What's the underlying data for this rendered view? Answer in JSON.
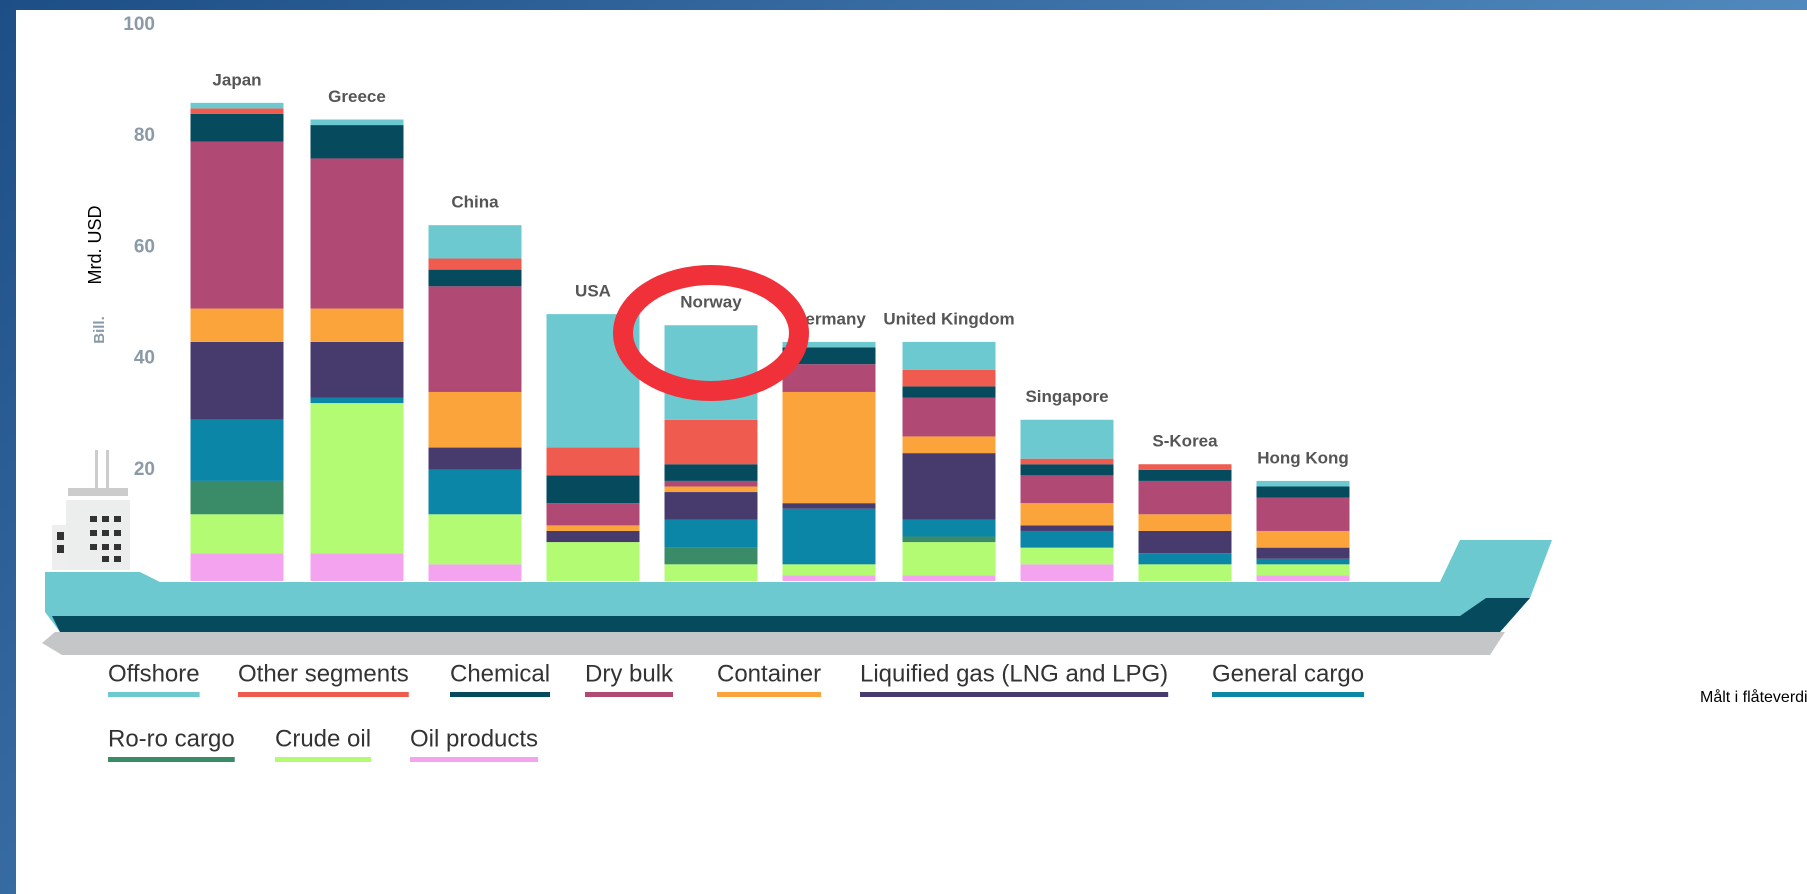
{
  "chart_data": {
    "type": "stacked_bar",
    "ylabel": "Bill.",
    "ylabel_secondary": "Mrd. USD",
    "note": "Målt i flåteverdi",
    "categories": [
      "Japan",
      "Greece",
      "China",
      "USA",
      "Norway",
      "Germany",
      "United Kingdom",
      "Singapore",
      "S-Korea",
      "Hong Kong"
    ],
    "ylim": [
      0,
      100
    ],
    "yticks": [
      20,
      40,
      60,
      80,
      100
    ],
    "series": [
      {
        "name": "Offshore",
        "color": "#6cc9d0",
        "values": [
          1,
          1,
          6,
          24,
          17,
          1,
          5,
          7,
          0,
          1
        ]
      },
      {
        "name": "Other segments",
        "color": "#ef5b4f",
        "values": [
          1,
          0,
          2,
          5,
          8,
          0,
          3,
          1,
          1,
          0
        ]
      },
      {
        "name": "Chemical",
        "color": "#064a5d",
        "values": [
          5,
          6,
          3,
          5,
          3,
          3,
          2,
          2,
          2,
          2
        ]
      },
      {
        "name": "Dry bulk",
        "color": "#b04a75",
        "values": [
          30,
          27,
          19,
          4,
          1,
          5,
          7,
          5,
          6,
          6
        ]
      },
      {
        "name": "Container",
        "color": "#fba43c",
        "values": [
          6,
          6,
          10,
          1,
          1,
          20,
          3,
          4,
          3,
          3
        ]
      },
      {
        "name": "Liquified gas (LNG and LPG)",
        "color": "#473b6e",
        "values": [
          14,
          10,
          4,
          2,
          5,
          1,
          12,
          1,
          4,
          2
        ]
      },
      {
        "name": "General cargo",
        "color": "#0c86a6",
        "values": [
          11,
          1,
          8,
          0,
          5,
          10,
          3,
          3,
          2,
          1
        ]
      },
      {
        "name": "Ro-ro cargo",
        "color": "#3a8c68",
        "values": [
          6,
          0,
          0,
          0,
          3,
          0,
          1,
          0,
          0,
          0
        ]
      },
      {
        "name": "Crude oil",
        "color": "#b3fb72",
        "values": [
          7,
          27,
          9,
          7,
          3,
          2,
          6,
          3,
          3,
          2
        ]
      },
      {
        "name": "Oil products",
        "color": "#f4a4ee",
        "values": [
          5,
          5,
          3,
          0,
          0,
          1,
          1,
          3,
          0,
          1
        ]
      }
    ]
  }
}
